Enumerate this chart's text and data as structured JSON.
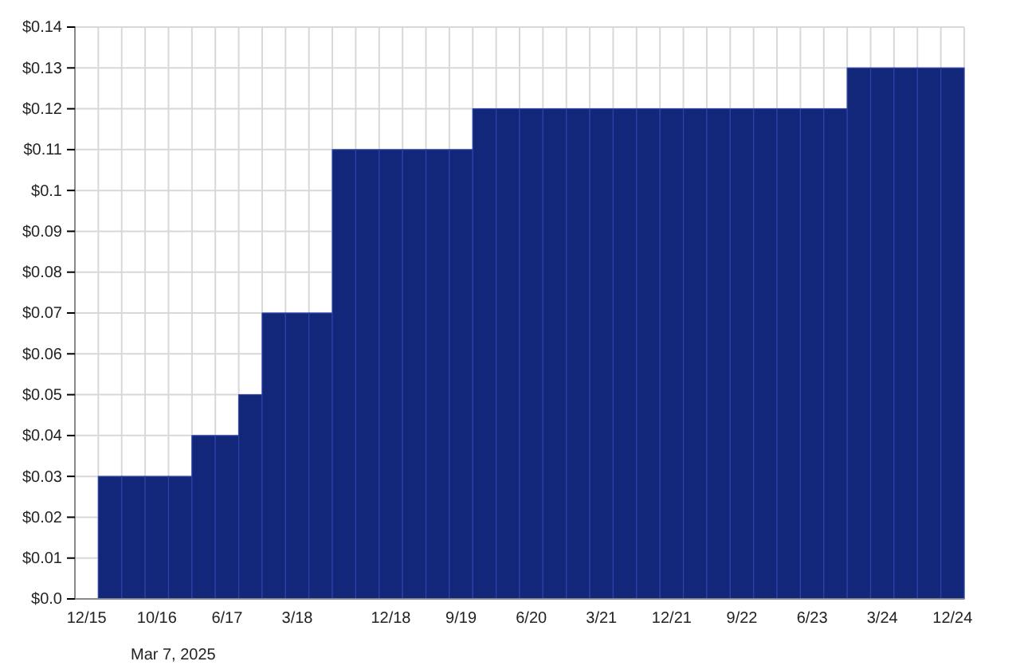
{
  "chart_data": {
    "type": "bar",
    "categories": [
      "12/15",
      null,
      null,
      "10/16",
      null,
      null,
      "6/17",
      null,
      null,
      "3/18",
      null,
      null,
      null,
      "12/18",
      null,
      null,
      "9/19",
      null,
      null,
      "6/20",
      null,
      null,
      "3/21",
      null,
      null,
      "12/21",
      null,
      null,
      "9/22",
      null,
      null,
      "6/23",
      null,
      null,
      "3/24",
      null,
      null,
      "12/24"
    ],
    "values": [
      0,
      0.03,
      0.03,
      0.03,
      0.03,
      0.04,
      0.04,
      0.05,
      0.07,
      0.07,
      0.07,
      0.11,
      0.11,
      0.11,
      0.11,
      0.11,
      0.11,
      0.12,
      0.12,
      0.12,
      0.12,
      0.12,
      0.12,
      0.12,
      0.12,
      0.12,
      0.12,
      0.12,
      0.12,
      0.12,
      0.12,
      0.12,
      0.12,
      0.13,
      0.13,
      0.13,
      0.13,
      0.13
    ],
    "color": "#13277a",
    "ylim": [
      0,
      0.14
    ],
    "yticks": [
      {
        "value": 0,
        "label": "$0.0"
      },
      {
        "value": 0.01,
        "label": "$0.01"
      },
      {
        "value": 0.02,
        "label": "$0.02"
      },
      {
        "value": 0.03,
        "label": "$0.03"
      },
      {
        "value": 0.04,
        "label": "$0.04"
      },
      {
        "value": 0.05,
        "label": "$0.05"
      },
      {
        "value": 0.06,
        "label": "$0.06"
      },
      {
        "value": 0.07,
        "label": "$0.07"
      },
      {
        "value": 0.08,
        "label": "$0.08"
      },
      {
        "value": 0.09,
        "label": "$0.09"
      },
      {
        "value": 0.1,
        "label": "$0.1"
      },
      {
        "value": 0.11,
        "label": "$0.11"
      },
      {
        "value": 0.12,
        "label": "$0.12"
      },
      {
        "value": 0.13,
        "label": "$0.13"
      },
      {
        "value": 0.14,
        "label": "$0.14"
      }
    ],
    "grid": true,
    "annotations": [
      "Mar 7, 2025"
    ]
  }
}
